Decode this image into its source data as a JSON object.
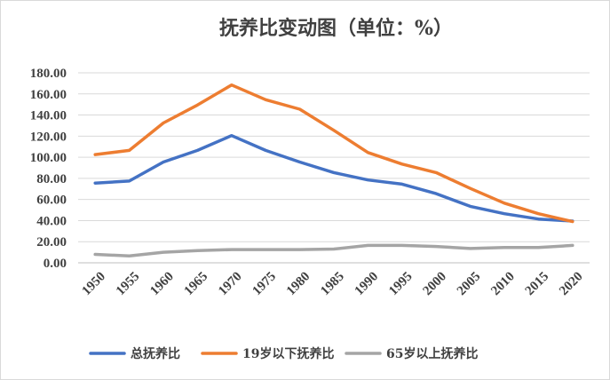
{
  "chart_data": {
    "type": "line",
    "title": "抚养比变动图（单位：%）",
    "xlabel": "",
    "ylabel": "",
    "categories": [
      "1950",
      "1955",
      "1960",
      "1965",
      "1970",
      "1975",
      "1980",
      "1985",
      "1990",
      "1995",
      "2000",
      "2005",
      "2010",
      "2015",
      "2020"
    ],
    "ylim": [
      0,
      180
    ],
    "yticks": [
      "0.00",
      "20.00",
      "40.00",
      "60.00",
      "80.00",
      "100.00",
      "120.00",
      "140.00",
      "160.00",
      "180.00"
    ],
    "grid": true,
    "legend_position": "bottom",
    "series": [
      {
        "name": "总抚养比",
        "color": "#4472c4",
        "values": [
          75.5,
          77.5,
          95.5,
          106.5,
          120.5,
          106.5,
          95.5,
          85.5,
          78.5,
          74.5,
          65.5,
          53.5,
          46.5,
          41.5,
          39.5
        ]
      },
      {
        "name": "19岁以下抚养比",
        "color": "#ed7d31",
        "values": [
          102.5,
          106.5,
          132.5,
          149.5,
          168.5,
          154.5,
          145.5,
          125.5,
          104.5,
          93.5,
          85.5,
          70.5,
          56.5,
          46.5,
          39.0
        ]
      },
      {
        "name": "65岁以上抚养比",
        "color": "#a5a5a5",
        "values": [
          8.0,
          6.5,
          10.0,
          11.5,
          12.5,
          12.5,
          12.5,
          13.0,
          16.5,
          16.5,
          15.5,
          13.5,
          14.5,
          14.5,
          16.5
        ]
      }
    ]
  }
}
